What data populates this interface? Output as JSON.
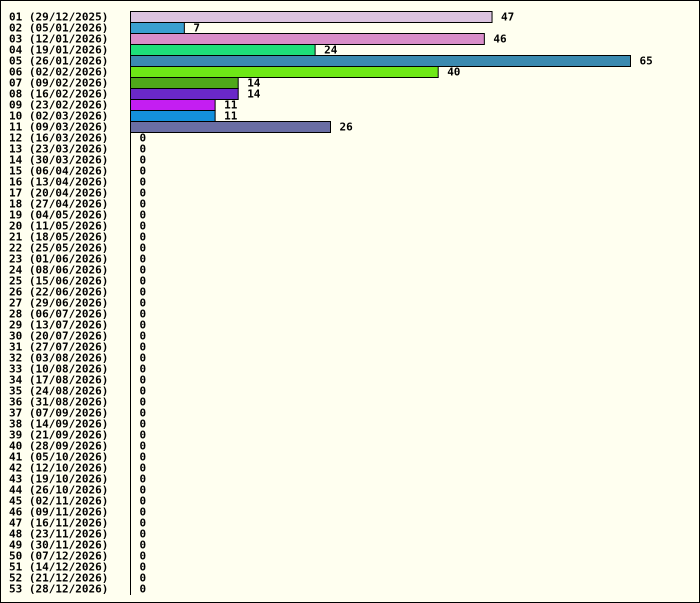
{
  "chart_data": {
    "type": "bar",
    "orientation": "horizontal",
    "title": "",
    "xlabel": "",
    "ylabel": "",
    "categories": [
      "01 (29/12/2025)",
      "02 (05/01/2026)",
      "03 (12/01/2026)",
      "04 (19/01/2026)",
      "05 (26/01/2026)",
      "06 (02/02/2026)",
      "07 (09/02/2026)",
      "08 (16/02/2026)",
      "09 (23/02/2026)",
      "10 (02/03/2026)",
      "11 (09/03/2026)",
      "12 (16/03/2026)",
      "13 (23/03/2026)",
      "14 (30/03/2026)",
      "15 (06/04/2026)",
      "16 (13/04/2026)",
      "17 (20/04/2026)",
      "18 (27/04/2026)",
      "19 (04/05/2026)",
      "20 (11/05/2026)",
      "21 (18/05/2026)",
      "22 (25/05/2026)",
      "23 (01/06/2026)",
      "24 (08/06/2026)",
      "25 (15/06/2026)",
      "26 (22/06/2026)",
      "27 (29/06/2026)",
      "28 (06/07/2026)",
      "29 (13/07/2026)",
      "30 (20/07/2026)",
      "31 (27/07/2026)",
      "32 (03/08/2026)",
      "33 (10/08/2026)",
      "34 (17/08/2026)",
      "35 (24/08/2026)",
      "36 (31/08/2026)",
      "37 (07/09/2026)",
      "38 (14/09/2026)",
      "39 (21/09/2026)",
      "40 (28/09/2026)",
      "41 (05/10/2026)",
      "42 (12/10/2026)",
      "43 (19/10/2026)",
      "44 (26/10/2026)",
      "45 (02/11/2026)",
      "46 (09/11/2026)",
      "47 (16/11/2026)",
      "48 (23/11/2026)",
      "49 (30/11/2026)",
      "50 (07/12/2026)",
      "51 (14/12/2026)",
      "52 (21/12/2026)",
      "53 (28/12/2026)"
    ],
    "values": [
      47,
      7,
      46,
      24,
      65,
      40,
      14,
      14,
      11,
      11,
      26,
      0,
      0,
      0,
      0,
      0,
      0,
      0,
      0,
      0,
      0,
      0,
      0,
      0,
      0,
      0,
      0,
      0,
      0,
      0,
      0,
      0,
      0,
      0,
      0,
      0,
      0,
      0,
      0,
      0,
      0,
      0,
      0,
      0,
      0,
      0,
      0,
      0,
      0,
      0,
      0,
      0,
      0
    ],
    "colors": [
      "#dcc4e0",
      "#3a9fcf",
      "#d98ec9",
      "#1edf7a",
      "#3b8ab0",
      "#6ee816",
      "#4fa81a",
      "#6a28c8",
      "#c41ef2",
      "#1490dc",
      "#6a6ea4"
    ],
    "xlim": [
      0,
      65
    ],
    "grid": false,
    "legend": "none",
    "data_labels": true
  }
}
